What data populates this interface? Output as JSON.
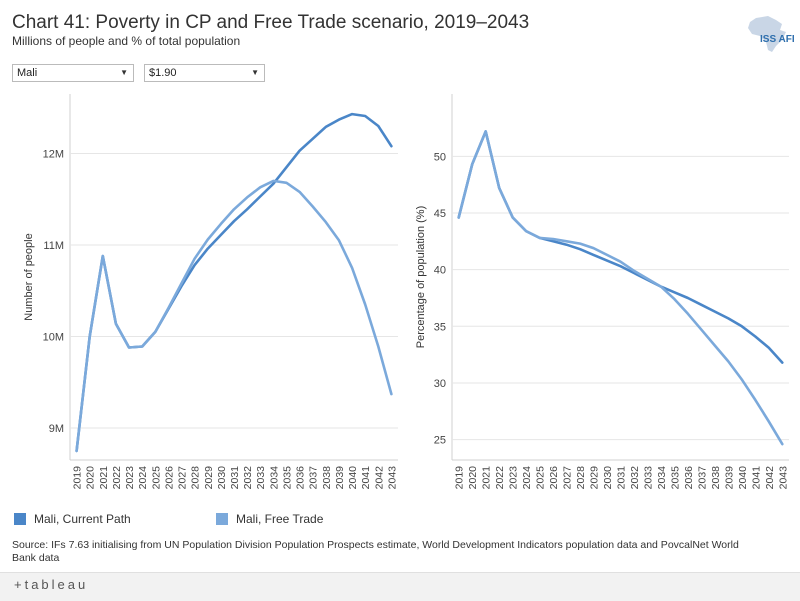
{
  "header": {
    "title": "Chart 41: Poverty in CP and Free Trade scenario, 2019–2043",
    "subtitle": "Millions of people and % of total population",
    "logo_text": "ISS AFI"
  },
  "filters": {
    "country": "Mali",
    "poverty_line": "$1.90"
  },
  "legend": [
    {
      "label": "Mali, Current Path",
      "color": "#4a86c8"
    },
    {
      "label": "Mali, Free Trade",
      "color": "#7ba9db"
    }
  ],
  "source": "Source: IFs 7.63 initialising from UN Population Division Population Prospects estimate, World Development Indicators population data and PovcalNet World Bank data",
  "footer": {
    "brand": "+tableau"
  },
  "chart_data": [
    {
      "type": "line",
      "ylabel": "Number of people",
      "ylim": [
        8.65,
        12.65
      ],
      "yticks": [
        9,
        10,
        11,
        12
      ],
      "yticklabels": [
        "9M",
        "10M",
        "11M",
        "12M"
      ],
      "x": [
        "2019",
        "2020",
        "2021",
        "2022",
        "2023",
        "2024",
        "2025",
        "2026",
        "2027",
        "2028",
        "2029",
        "2030",
        "2031",
        "2032",
        "2033",
        "2034",
        "2035",
        "2036",
        "2037",
        "2038",
        "2039",
        "2040",
        "2041",
        "2042",
        "2043"
      ],
      "series": [
        {
          "name": "Mali, Current Path",
          "color": "#4a86c8",
          "values": [
            8.75,
            10.0,
            10.88,
            10.14,
            9.88,
            9.89,
            10.05,
            10.3,
            10.55,
            10.78,
            10.96,
            11.11,
            11.26,
            11.39,
            11.53,
            11.67,
            11.85,
            12.03,
            12.16,
            12.29,
            12.37,
            12.43,
            12.41,
            12.3,
            12.08
          ]
        },
        {
          "name": "Mali, Free Trade",
          "color": "#7ba9db",
          "values": [
            8.75,
            10.0,
            10.88,
            10.14,
            9.88,
            9.89,
            10.05,
            10.31,
            10.58,
            10.85,
            11.06,
            11.23,
            11.39,
            11.52,
            11.63,
            11.7,
            11.68,
            11.58,
            11.42,
            11.25,
            11.05,
            10.75,
            10.35,
            9.89,
            9.37
          ]
        }
      ]
    },
    {
      "type": "line",
      "ylabel": "Percentage of population (%)",
      "ylim": [
        23.2,
        55.5
      ],
      "yticks": [
        25,
        30,
        35,
        40,
        45,
        50
      ],
      "yticklabels": [
        "25",
        "30",
        "35",
        "40",
        "45",
        "50"
      ],
      "x": [
        "2019",
        "2020",
        "2021",
        "2022",
        "2023",
        "2024",
        "2025",
        "2026",
        "2027",
        "2028",
        "2029",
        "2030",
        "2031",
        "2032",
        "2033",
        "2034",
        "2035",
        "2036",
        "2037",
        "2038",
        "2039",
        "2040",
        "2041",
        "2042",
        "2043"
      ],
      "series": [
        {
          "name": "Mali, Current Path",
          "color": "#4a86c8",
          "values": [
            44.6,
            49.3,
            52.2,
            47.2,
            44.6,
            43.4,
            42.8,
            42.5,
            42.2,
            41.8,
            41.3,
            40.8,
            40.3,
            39.7,
            39.1,
            38.5,
            38.0,
            37.5,
            36.9,
            36.3,
            35.7,
            35.0,
            34.1,
            33.1,
            31.8
          ]
        },
        {
          "name": "Mali, Free Trade",
          "color": "#7ba9db",
          "values": [
            44.6,
            49.3,
            52.2,
            47.2,
            44.6,
            43.4,
            42.8,
            42.7,
            42.5,
            42.3,
            41.9,
            41.3,
            40.7,
            39.9,
            39.2,
            38.5,
            37.4,
            36.1,
            34.7,
            33.3,
            31.9,
            30.3,
            28.5,
            26.6,
            24.6
          ]
        }
      ]
    }
  ]
}
